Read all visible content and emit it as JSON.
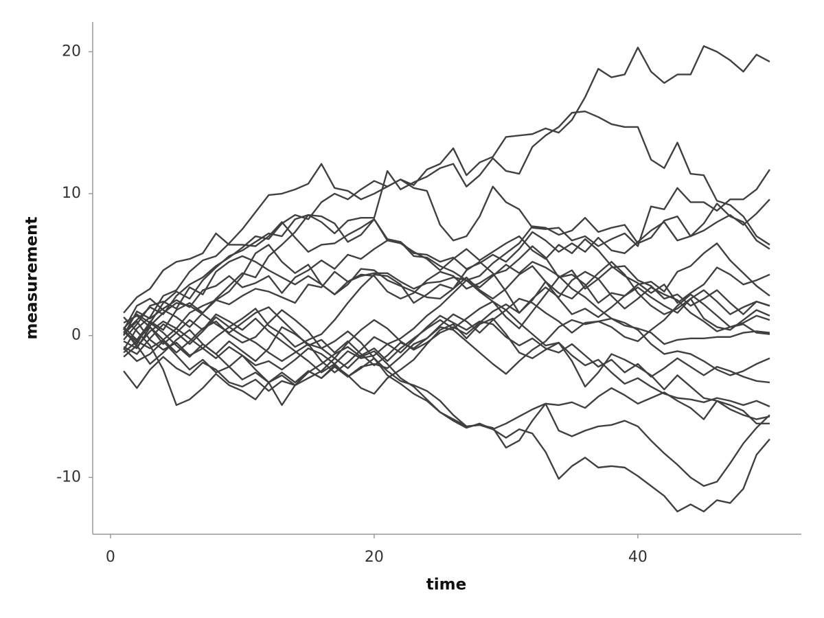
{
  "chart_data": {
    "type": "line",
    "x_label": "time",
    "y_label": "measurement",
    "color": "#404040",
    "xlim": [
      -1.35,
      52.4
    ],
    "xticks": [
      0,
      20,
      40
    ],
    "ylim": [
      -14,
      22.1
    ],
    "yticks": [
      -10,
      0,
      10,
      20
    ],
    "grid": false,
    "x": [
      1,
      2,
      3,
      4,
      5,
      6,
      7,
      8,
      9,
      10,
      11,
      12,
      13,
      14,
      15,
      16,
      17,
      18,
      19,
      20,
      21,
      22,
      23,
      24,
      25,
      26,
      27,
      28,
      29,
      30,
      31,
      32,
      33,
      34,
      35,
      36,
      37,
      38,
      39,
      40,
      41,
      42,
      43,
      44,
      45,
      46,
      47,
      48,
      49,
      50
    ],
    "series": [
      {
        "values": [
          0.2,
          1.1,
          2.0,
          1.5,
          2.8,
          3.6,
          4.1,
          4.9,
          5.5,
          6.2,
          7.0,
          6.8,
          7.9,
          8.5,
          8.2,
          9.4,
          10.0,
          9.6,
          10.3,
          10.9,
          10.5,
          11.0,
          10.6,
          11.7,
          12.1,
          13.2,
          11.3,
          12.2,
          12.6,
          14.0,
          14.1,
          14.2,
          14.6,
          14.3,
          15.2,
          16.8,
          18.8,
          18.2,
          18.4,
          20.3,
          18.6,
          17.8,
          18.4,
          18.4,
          20.4,
          20.0,
          19.4,
          18.6,
          19.8,
          19.3
        ]
      },
      {
        "values": [
          0.5,
          1.5,
          0.9,
          2.3,
          3.1,
          2.6,
          3.9,
          4.8,
          5.6,
          6.0,
          6.6,
          7.2,
          7.0,
          8.2,
          8.5,
          8.0,
          7.2,
          8.1,
          8.3,
          8.3,
          11.6,
          10.3,
          10.8,
          11.2,
          11.8,
          12.1,
          10.5,
          11.3,
          12.5,
          11.6,
          11.4,
          13.3,
          14.1,
          14.7,
          15.7,
          15.8,
          15.4,
          14.9,
          14.7,
          14.7,
          12.4,
          11.8,
          13.6,
          11.4,
          11.3,
          9.5,
          9.2,
          8.4,
          7.0,
          6.4
        ]
      },
      {
        "values": [
          -1.0,
          0.5,
          1.3,
          2.8,
          3.2,
          4.5,
          5.3,
          5.6,
          6.5,
          7.5,
          8.7,
          9.9,
          10.0,
          10.3,
          10.7,
          12.1,
          10.4,
          10.2,
          9.6,
          10.0,
          10.5,
          11.0,
          10.4,
          10.2,
          7.8,
          6.7,
          7.0,
          8.4,
          10.5,
          9.4,
          8.9,
          7.6,
          7.5,
          7.6,
          6.7,
          7.0,
          6.3,
          6.8,
          7.2,
          6.3,
          9.1,
          8.9,
          10.4,
          9.4,
          9.4,
          8.8,
          9.6,
          9.6,
          10.3,
          11.7
        ]
      },
      {
        "values": [
          0.3,
          -0.6,
          1.0,
          0.4,
          1.8,
          2.3,
          1.6,
          2.6,
          3.5,
          4.4,
          4.1,
          5.6,
          6.4,
          7.3,
          8.5,
          8.4,
          7.9,
          6.6,
          7.1,
          8.2,
          6.7,
          6.6,
          5.8,
          5.7,
          5.2,
          5.5,
          4.7,
          5.1,
          5.7,
          5.2,
          6.1,
          7.3,
          6.7,
          5.9,
          6.5,
          5.9,
          6.9,
          6.0,
          5.8,
          6.6,
          7.4,
          8.0,
          6.7,
          7.0,
          7.4,
          8.0,
          8.5,
          7.8,
          8.6,
          9.6
        ]
      },
      {
        "values": [
          1.6,
          2.7,
          3.3,
          4.6,
          5.2,
          5.4,
          5.8,
          7.2,
          6.4,
          6.4,
          6.3,
          7.0,
          8.0,
          6.9,
          5.9,
          6.4,
          6.5,
          7.1,
          7.6,
          8.2,
          6.8,
          6.6,
          5.6,
          5.5,
          4.9,
          4.5,
          3.9,
          4.2,
          5.1,
          5.8,
          6.5,
          7.7,
          7.6,
          7.1,
          7.4,
          8.3,
          7.3,
          7.6,
          7.8,
          6.5,
          6.9,
          8.1,
          8.4,
          7.0,
          7.9,
          9.3,
          8.4,
          8.0,
          6.7,
          6.1
        ]
      },
      {
        "values": [
          0,
          1.7,
          1.2,
          1.9,
          2.5,
          2.0,
          3.2,
          3.5,
          4.2,
          3.4,
          3.7,
          4.2,
          3.0,
          4.1,
          4.6,
          5.3,
          4.7,
          5.7,
          5.4,
          6.1,
          6.7,
          6.5,
          5.9,
          5.4,
          4.6,
          5.4,
          6.1,
          5.3,
          5.9,
          6.5,
          7.0,
          6.0,
          5.4,
          6.4,
          5.8,
          6.8,
          6.0,
          4.9,
          4.2,
          3.7,
          3.0,
          3.6,
          2.3,
          3.0,
          3.6,
          4.8,
          4.3,
          3.6,
          3.9,
          4.3
        ]
      },
      {
        "values": [
          -0.3,
          0.8,
          2.1,
          2.4,
          1.9,
          3.4,
          2.9,
          4.5,
          5.2,
          5.6,
          5.2,
          4.6,
          4.1,
          3.6,
          4.2,
          3.6,
          2.9,
          3.8,
          4.3,
          4.2,
          3.1,
          2.6,
          3.0,
          3.9,
          4.5,
          4.2,
          3.3,
          3.7,
          4.3,
          4.6,
          5.4,
          6.3,
          5.5,
          4.1,
          4.3,
          3.6,
          2.3,
          3.0,
          2.8,
          3.6,
          3.8,
          3.1,
          4.5,
          4.9,
          5.8,
          6.5,
          5.3,
          4.4,
          3.5,
          2.8
        ]
      },
      {
        "values": [
          0.5,
          -0.8,
          0.3,
          1.0,
          0.5,
          1.6,
          2.1,
          2.5,
          2.2,
          2.8,
          3.3,
          3.1,
          2.7,
          2.3,
          3.6,
          3.4,
          4.5,
          3.8,
          4.2,
          4.4,
          4.4,
          3.8,
          3.3,
          3.7,
          3.8,
          4.1,
          3.9,
          3.1,
          2.4,
          1.3,
          0.5,
          1.7,
          2.9,
          4.1,
          4.6,
          3.3,
          4.0,
          4.8,
          4.9,
          3.9,
          3.5,
          2.6,
          2.9,
          2.1,
          2.6,
          3.2,
          2.3,
          1.5,
          2.4,
          2.1
        ]
      },
      {
        "values": [
          -0.8,
          -1.3,
          -0.2,
          0.8,
          0.2,
          -0.6,
          0.3,
          1.3,
          0.6,
          1.2,
          1.9,
          0.7,
          0.1,
          -0.8,
          -0.3,
          0.1,
          1.1,
          2.3,
          3.4,
          4.3,
          4.2,
          3.6,
          2.3,
          2.9,
          3.6,
          3.3,
          4.6,
          5.2,
          4.4,
          3.1,
          1.6,
          2.5,
          3.8,
          3.0,
          2.6,
          3.5,
          4.4,
          5.2,
          4.3,
          3.0,
          2.1,
          1.5,
          1.9,
          2.6,
          1.2,
          0.6,
          0.4,
          1.1,
          1.8,
          1.4
        ]
      },
      {
        "values": [
          -0.4,
          -0.9,
          0.6,
          -0.3,
          -1.2,
          -0.4,
          0.5,
          1.0,
          0.1,
          -0.5,
          -0.1,
          0.9,
          1.8,
          1.1,
          0.3,
          -0.9,
          -1.6,
          -0.5,
          0.4,
          1.1,
          0.5,
          -0.4,
          -1.0,
          -0.5,
          0.2,
          0.6,
          0.1,
          0.9,
          1.7,
          2.2,
          1.6,
          2.6,
          3.4,
          2.7,
          3.9,
          4.5,
          4.0,
          2.8,
          1.9,
          2.6,
          3.4,
          2.9,
          2.5,
          1.6,
          1.0,
          0.3,
          0.6,
          0.8,
          0.2,
          0.1
        ]
      },
      {
        "values": [
          0.3,
          -0.4,
          -0.9,
          -0.3,
          0.5,
          -0.2,
          -0.9,
          -1.6,
          -0.8,
          -1.4,
          -2.1,
          -1.8,
          -2.4,
          -1.7,
          -0.9,
          -1.3,
          -2.0,
          -1.1,
          -1.6,
          -1.4,
          -0.6,
          -0.2,
          0.5,
          1.4,
          2.1,
          3.0,
          3.9,
          3.4,
          4.2,
          5.0,
          4.4,
          5.2,
          4.8,
          4.2,
          3.3,
          2.7,
          1.9,
          1.2,
          0.9,
          0.4,
          -0.6,
          -1.3,
          -1.1,
          -1.3,
          -1.8,
          -2.4,
          -2.8,
          -2.5,
          -2.0,
          -1.6
        ]
      },
      {
        "values": [
          -1.5,
          -0.7,
          -2.0,
          -1.2,
          -0.3,
          0.4,
          -0.6,
          -1.3,
          -0.4,
          -1.1,
          -1.8,
          -0.9,
          0.6,
          0.1,
          -0.6,
          -1.8,
          -2.6,
          -1.9,
          -1.0,
          -0.1,
          -0.6,
          -1.2,
          -0.3,
          0.6,
          1.4,
          0.9,
          0.4,
          1.0,
          0.8,
          -0.1,
          -0.7,
          -0.2,
          -0.9,
          -1.2,
          -0.6,
          -1.4,
          -2.2,
          -1.7,
          -2.6,
          -2.0,
          -2.9,
          -2.3,
          -1.6,
          -2.2,
          -2.8,
          -2.2,
          -2.5,
          -2.9,
          -3.2,
          -3.3
        ]
      },
      {
        "values": [
          -0.9,
          -1.8,
          -1.3,
          -0.4,
          -1.4,
          -2.4,
          -1.7,
          -2.6,
          -2.2,
          -3.1,
          -2.6,
          -3.3,
          -2.8,
          -3.5,
          -3.0,
          -2.5,
          -1.6,
          -2.3,
          -1.4,
          -0.9,
          -1.8,
          -0.9,
          -0.2,
          0.5,
          1.1,
          0.5,
          1.2,
          1.9,
          2.4,
          1.8,
          0.9,
          0.1,
          -0.7,
          -0.5,
          -1.4,
          -2.1,
          -1.7,
          -2.6,
          -3.4,
          -3.0,
          -3.6,
          -4.1,
          -4.4,
          -4.5,
          -4.7,
          -4.4,
          -4.6,
          -4.9,
          -4.6,
          -5.0
        ]
      },
      {
        "values": [
          0.6,
          -0.3,
          0.9,
          0.2,
          -0.7,
          -1.5,
          -0.6,
          -1.3,
          -2.2,
          -1.4,
          -2.4,
          -3.3,
          -2.6,
          -3.3,
          -2.5,
          -3.0,
          -2.2,
          -2.9,
          -2.3,
          -1.6,
          -2.8,
          -3.4,
          -4.1,
          -4.6,
          -5.4,
          -6.0,
          -6.5,
          -6.2,
          -6.6,
          -7.2,
          -6.6,
          -6.9,
          -8.2,
          -10.1,
          -9.2,
          -8.6,
          -9.3,
          -9.2,
          -9.3,
          -9.9,
          -10.6,
          -11.3,
          -12.4,
          -11.9,
          -12.4,
          -11.6,
          -11.8,
          -10.8,
          -8.4,
          -7.3
        ]
      },
      {
        "values": [
          -2.5,
          -3.7,
          -2.4,
          -1.5,
          -2.3,
          -2.8,
          -1.9,
          -2.4,
          -3.3,
          -3.6,
          -3.1,
          -3.9,
          -3.2,
          -3.5,
          -2.6,
          -2.0,
          -1.3,
          -0.8,
          -1.5,
          -1.1,
          -2.0,
          -3.0,
          -3.6,
          -4.5,
          -5.4,
          -5.9,
          -6.4,
          -6.3,
          -6.5,
          -7.9,
          -7.4,
          -6.0,
          -4.8,
          -6.7,
          -7.1,
          -6.7,
          -6.4,
          -6.3,
          -6.0,
          -6.4,
          -7.4,
          -8.3,
          -9.1,
          -10.0,
          -10.6,
          -10.3,
          -9.0,
          -7.6,
          -6.5,
          -5.6
        ]
      },
      {
        "values": [
          1.3,
          0.3,
          -0.7,
          -2.4,
          -4.9,
          -4.5,
          -3.7,
          -2.7,
          -3.5,
          -3.9,
          -4.5,
          -3.3,
          -4.9,
          -3.5,
          -2.5,
          -3.0,
          -2.1,
          -2.8,
          -3.7,
          -4.1,
          -3.0,
          -2.4,
          -1.7,
          -0.6,
          0.4,
          0.8,
          -0.2,
          0.8,
          1.2,
          0.1,
          -1.2,
          -1.6,
          -1.0,
          -0.5,
          -1.8,
          -3.6,
          -2.6,
          -1.3,
          -1.7,
          -2.2,
          -2.8,
          -3.8,
          -2.8,
          -3.6,
          -4.4,
          -4.6,
          -5.2,
          -5.6,
          -5.9,
          -5.7
        ]
      },
      {
        "values": [
          0.1,
          1.0,
          -0.3,
          -1.0,
          -0.5,
          -1.4,
          -0.9,
          -0.1,
          0.6,
          0.0,
          -0.5,
          -1.2,
          -1.8,
          -1.2,
          -0.6,
          -0.9,
          -0.4,
          0.3,
          -0.5,
          -1.6,
          -2.5,
          -3.2,
          -3.5,
          -3.9,
          -4.6,
          -5.6,
          -6.4,
          -6.3,
          -6.6,
          -6.2,
          -5.7,
          -5.2,
          -4.8,
          -4.9,
          -4.7,
          -5.1,
          -4.3,
          -3.7,
          -4.2,
          -4.8,
          -4.4,
          -4.0,
          -4.6,
          -5.1,
          -5.9,
          -4.6,
          -4.9,
          -5.3,
          -6.2,
          -6.2
        ]
      },
      {
        "values": [
          0.9,
          1.4,
          0.6,
          -0.6,
          0.2,
          1.1,
          0.4,
          1.5,
          1.0,
          0.4,
          1.2,
          0.3,
          -0.4,
          -1.1,
          -1.8,
          -2.6,
          -2.0,
          -2.9,
          -2.2,
          -2.0,
          -2.3,
          -1.5,
          -0.6,
          -0.2,
          0.7,
          1.5,
          1.0,
          0.2,
          1.1,
          1.8,
          2.6,
          2.3,
          1.6,
          1.0,
          0.2,
          0.9,
          1.0,
          0.6,
          -0.1,
          -0.4,
          0.4,
          1.1,
          2.1,
          2.9,
          2.2,
          1.4,
          0.6,
          0.9,
          1.4,
          1.1
        ]
      },
      {
        "values": [
          -1.2,
          -0.4,
          0.7,
          1.6,
          2.3,
          2.1,
          1.5,
          0.8,
          0.2,
          0.9,
          1.6,
          2.0,
          1.1,
          0.2,
          -0.7,
          -0.3,
          -1.2,
          -0.4,
          -1.3,
          -2.1,
          -1.4,
          -0.5,
          -0.9,
          -0.2,
          0.6,
          0.4,
          -0.4,
          -1.2,
          -2.0,
          -2.7,
          -1.8,
          -1.0,
          -0.4,
          0.6,
          1.1,
          0.8,
          1.0,
          1.2,
          0.7,
          0.5,
          0.2,
          -0.6,
          -0.3,
          -0.2,
          -0.2,
          -0.1,
          -0.1,
          0.2,
          0.3,
          0.2
        ]
      },
      {
        "values": [
          0.4,
          2.1,
          2.6,
          1.8,
          1.3,
          0.6,
          1.6,
          2.5,
          3.1,
          4.2,
          5.8,
          6.4,
          5.2,
          4.4,
          5.0,
          3.6,
          2.9,
          3.6,
          4.7,
          4.6,
          3.9,
          3.5,
          3.1,
          2.7,
          2.6,
          3.3,
          4.1,
          3.2,
          2.6,
          3.3,
          4.3,
          4.9,
          3.8,
          2.6,
          1.5,
          1.9,
          1.3,
          2.0,
          2.8,
          3.4,
          2.7,
          2.1,
          1.6,
          2.6,
          3.2,
          2.4,
          1.5,
          2.0,
          2.4,
          2.1
        ]
      }
    ]
  }
}
